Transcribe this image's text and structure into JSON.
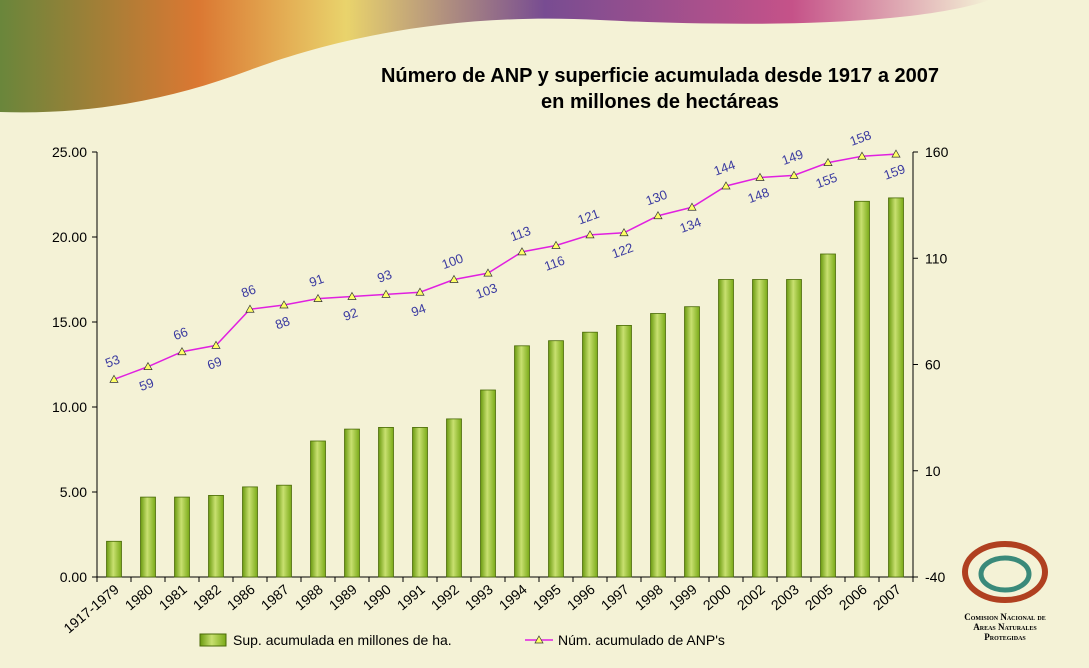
{
  "chart_data": {
    "type": "bar-line",
    "title": "Número de ANP y superficie acumulada desde 1917 a 2007",
    "subtitle": "en millones de hectáreas",
    "categories": [
      "1917-1979",
      "1980",
      "1981",
      "1982",
      "1986",
      "1987",
      "1988",
      "1989",
      "1990",
      "1991",
      "1992",
      "1993",
      "1994",
      "1995",
      "1996",
      "1997",
      "1998",
      "1999",
      "2000",
      "2002",
      "2003",
      "2005",
      "2006",
      "2007"
    ],
    "series": [
      {
        "name": "Sup. acumulada en millones de ha.",
        "color": "#8fbf2a",
        "kind": "bar",
        "values": [
          2.1,
          4.7,
          4.7,
          4.8,
          5.3,
          5.4,
          8.0,
          8.7,
          8.8,
          8.8,
          9.3,
          11.0,
          13.6,
          13.9,
          14.4,
          14.8,
          15.5,
          15.9,
          17.5,
          17.5,
          17.5,
          19.0,
          22.1,
          22.3
        ]
      },
      {
        "name": "Núm. acumulado de  ANP's",
        "color": "#e020e0",
        "kind": "line",
        "axis": "y2",
        "values": [
          53,
          59,
          66,
          69,
          86,
          88,
          91,
          92,
          93,
          94,
          100,
          103,
          113,
          116,
          121,
          122,
          130,
          134,
          144,
          148,
          149,
          155,
          158,
          159
        ]
      }
    ],
    "ylim": [
      0,
      25
    ],
    "yticks": [
      {
        "value": 0,
        "label": "0.00"
      },
      {
        "value": 5,
        "label": "5.00"
      },
      {
        "value": 10,
        "label": "10.00"
      },
      {
        "value": 15,
        "label": "15.00"
      },
      {
        "value": 20,
        "label": "20.00"
      },
      {
        "value": 25,
        "label": "25.00"
      }
    ],
    "y2lim": [
      -40,
      160
    ],
    "y2ticks": [
      -40,
      10,
      60,
      110,
      160
    ],
    "logo_text": [
      "Comision Nacional de",
      "Areas Naturales",
      "Protegidas"
    ]
  }
}
